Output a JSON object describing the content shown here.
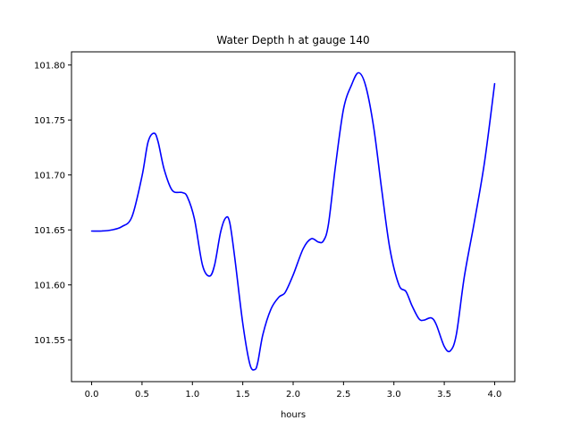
{
  "chart_data": {
    "type": "line",
    "title": "Water Depth h at gauge 140",
    "xlabel": "hours",
    "ylabel": "",
    "xlim": [
      -0.2,
      4.2
    ],
    "ylim": [
      101.512,
      101.812
    ],
    "xticks": [
      0.0,
      0.5,
      1.0,
      1.5,
      2.0,
      2.5,
      3.0,
      3.5,
      4.0
    ],
    "xtick_labels": [
      "0.0",
      "0.5",
      "1.0",
      "1.5",
      "2.0",
      "2.5",
      "3.0",
      "3.5",
      "4.0"
    ],
    "yticks": [
      101.55,
      101.6,
      101.65,
      101.7,
      101.75,
      101.8
    ],
    "ytick_labels": [
      "101.55",
      "101.60",
      "101.65",
      "101.70",
      "101.75",
      "101.80"
    ],
    "grid": false,
    "series": [
      {
        "color": "#0000ff",
        "x": [
          0.0,
          0.1,
          0.2,
          0.3,
          0.4,
          0.5,
          0.56,
          0.62,
          0.66,
          0.72,
          0.8,
          0.9,
          0.95,
          1.02,
          1.1,
          1.17,
          1.22,
          1.28,
          1.33,
          1.37,
          1.42,
          1.5,
          1.57,
          1.62,
          1.65,
          1.7,
          1.78,
          1.86,
          1.92,
          2.0,
          2.1,
          2.18,
          2.25,
          2.3,
          2.35,
          2.42,
          2.5,
          2.58,
          2.65,
          2.72,
          2.8,
          2.88,
          2.96,
          3.05,
          3.12,
          3.18,
          3.25,
          3.3,
          3.37,
          3.42,
          3.5,
          3.56,
          3.62,
          3.7,
          3.8,
          3.9,
          4.0
        ],
        "y": [
          101.649,
          101.649,
          101.65,
          101.653,
          101.662,
          101.699,
          101.73,
          101.738,
          101.73,
          101.705,
          101.686,
          101.684,
          101.68,
          101.66,
          101.618,
          101.608,
          101.618,
          101.648,
          101.661,
          101.657,
          101.625,
          101.565,
          101.528,
          101.523,
          101.53,
          101.555,
          101.578,
          101.589,
          101.593,
          101.609,
          101.633,
          101.642,
          101.639,
          101.64,
          101.655,
          101.708,
          101.76,
          101.782,
          101.793,
          101.781,
          101.743,
          101.686,
          101.633,
          101.6,
          101.594,
          101.581,
          101.569,
          101.568,
          101.57,
          101.564,
          101.544,
          101.54,
          101.555,
          101.608,
          101.658,
          101.712,
          101.783
        ]
      }
    ]
  }
}
